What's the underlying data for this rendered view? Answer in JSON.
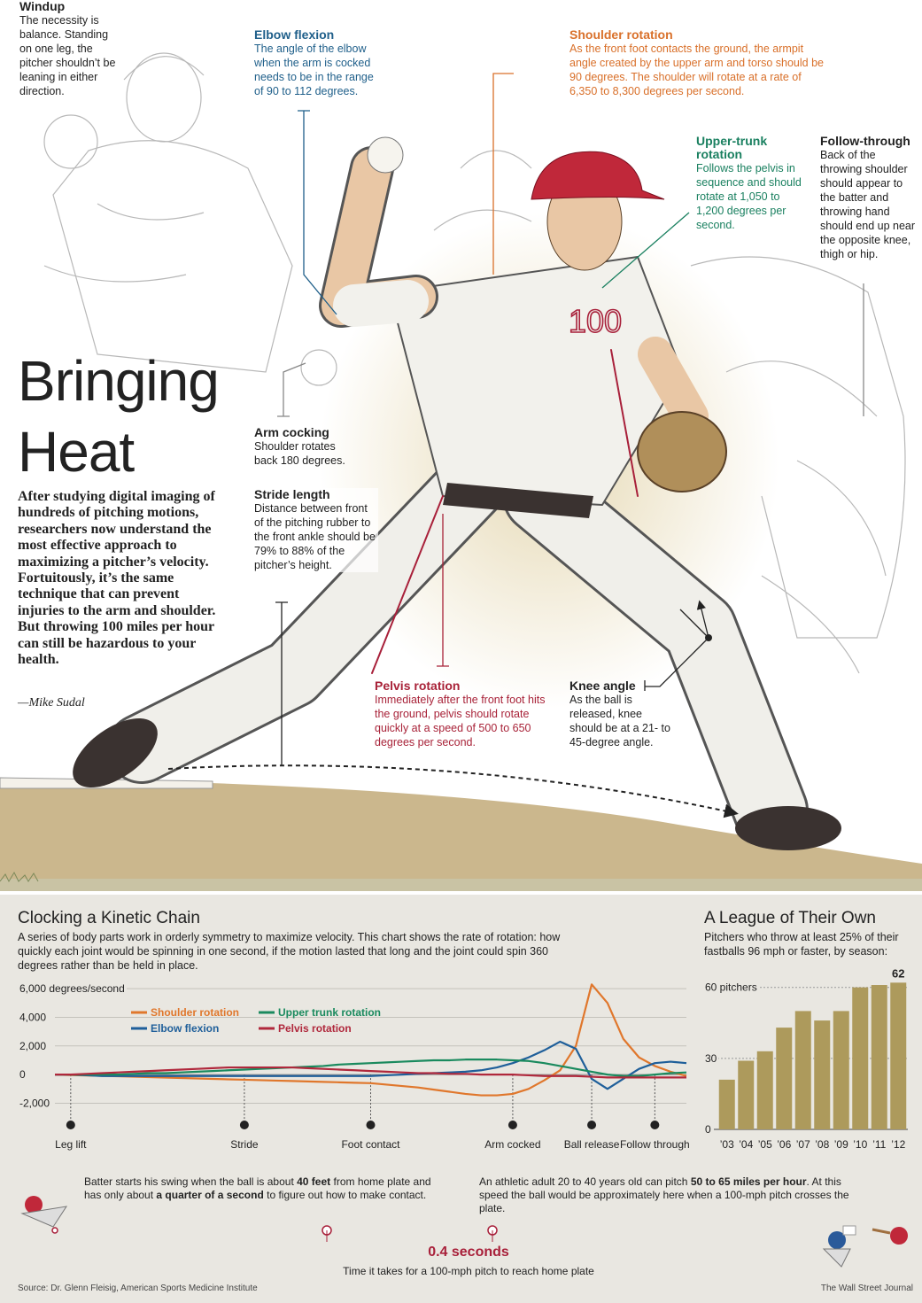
{
  "notes": {
    "windup": {
      "heading": "Windup",
      "body": "The necessity is balance. Standing on one leg, the pitcher shouldn’t be leaning in either direction."
    },
    "elbow": {
      "heading": "Elbow flexion",
      "body": "The angle of the elbow when the arm is cocked needs to be in the range of 90 to 112 degrees."
    },
    "shoulder": {
      "heading": "Shoulder rotation",
      "body": "As the front foot contacts the ground, the armpit angle created by the upper arm and torso should be 90 degrees. The shoulder will rotate at a rate of 6,350 to 8,300 degrees per second."
    },
    "trunk": {
      "heading": "Upper-trunk rotation",
      "body": "Follows the pelvis in sequence and should rotate at 1,050 to 1,200 degrees per second."
    },
    "follow": {
      "heading": "Follow-through",
      "body": "Back of the throwing shoulder should appear to the batter and throwing hand should end up near the opposite knee, thigh or hip."
    },
    "arm": {
      "heading": "Arm cocking",
      "body": "Shoulder rotates back 180 degrees."
    },
    "stride": {
      "heading": "Stride length",
      "body": "Distance between front of the pitching rubber to the front ankle should be 79% to 88% of the pitcher’s height."
    },
    "pelvis": {
      "heading": "Pelvis rotation",
      "body": "Immediately after the front foot hits the ground, pelvis should rotate quickly at a speed of 500 to 650 degrees per second."
    },
    "knee": {
      "heading": "Knee angle",
      "body": "As the ball is released, knee should be at a 21- to 45-degree angle."
    }
  },
  "jersey_number": "100",
  "header": {
    "title": "Bringing Heat",
    "intro": "After studying digital imaging of hundreds of pitching motions, researchers now understand the most effective approach to maximizing a pitcher’s velocity. Fortuitously, it’s the same technique that can prevent injuries to the arm and shoulder. But throwing 100 miles per hour can still be hazardous to your health.",
    "byline": "—Mike Sudal"
  },
  "chart_data": [
    {
      "type": "line",
      "title": "Clocking a Kinetic Chain",
      "subtitle": "A series of body parts work in orderly symmetry to maximize velocity. This chart shows the rate of rotation: how quickly each joint would be spinning in one second, if the motion lasted that long and the joint could spin 360 degrees rather than be held in place.",
      "categories": [
        null,
        "Leg lift",
        null,
        null,
        null,
        null,
        null,
        null,
        null,
        null,
        null,
        null,
        "Stride",
        null,
        null,
        null,
        null,
        null,
        null,
        null,
        "Foot contact",
        null,
        null,
        null,
        null,
        null,
        null,
        null,
        null,
        "Arm cocked",
        null,
        null,
        null,
        null,
        "Ball release",
        null,
        null,
        null,
        "Follow through",
        null,
        null
      ],
      "ylim": [
        -2900,
        7000
      ],
      "yticks": [
        {
          "value": 6000,
          "label": "6,000 degrees/second"
        },
        {
          "value": 4000,
          "label": "4,000"
        },
        {
          "value": 2000,
          "label": "2,000"
        },
        0,
        {
          "value": -2000,
          "label": "-2,000"
        }
      ],
      "series": [
        {
          "name": "Shoulder rotation",
          "color": "#e0772c",
          "values": [
            0,
            -30,
            -60,
            -90,
            -120,
            -150,
            -180,
            -210,
            -240,
            -270,
            -300,
            -330,
            -360,
            -390,
            -420,
            -450,
            -480,
            -510,
            -540,
            -570,
            -600,
            -700,
            -800,
            -900,
            -1050,
            -1200,
            -1350,
            -1450,
            -1450,
            -1350,
            -1000,
            -400,
            300,
            2000,
            6300,
            5000,
            2500,
            1200,
            600,
            200,
            -100
          ]
        },
        {
          "name": "Elbow flexion",
          "color": "#1f5f9a",
          "values": [
            0,
            0,
            -50,
            -100,
            -100,
            -100,
            -100,
            -100,
            -100,
            -100,
            -100,
            -100,
            -100,
            -100,
            -100,
            -100,
            -100,
            -100,
            -100,
            -100,
            -100,
            -50,
            0,
            50,
            100,
            150,
            200,
            300,
            500,
            800,
            1200,
            1700,
            2300,
            1800,
            -300,
            -1000,
            -300,
            400,
            800,
            900,
            800
          ]
        },
        {
          "name": "Upper trunk rotation",
          "color": "#1a8a5e",
          "values": [
            0,
            0,
            0,
            0,
            0,
            50,
            100,
            100,
            150,
            200,
            250,
            300,
            350,
            400,
            450,
            500,
            550,
            600,
            700,
            750,
            800,
            850,
            900,
            950,
            1000,
            1000,
            1050,
            1050,
            1050,
            1000,
            950,
            800,
            600,
            400,
            200,
            0,
            -100,
            -100,
            0,
            100,
            150
          ]
        },
        {
          "name": "Pelvis rotation",
          "color": "#b0283c",
          "values": [
            0,
            0,
            50,
            100,
            150,
            200,
            250,
            300,
            350,
            400,
            450,
            500,
            500,
            500,
            500,
            500,
            450,
            400,
            350,
            300,
            250,
            200,
            150,
            100,
            100,
            50,
            50,
            0,
            0,
            0,
            -50,
            -100,
            -100,
            -100,
            -150,
            -200,
            -200,
            -200,
            -200,
            -200,
            -200
          ]
        }
      ]
    },
    {
      "type": "bar",
      "title": "A League of Their Own",
      "subtitle": "Pitchers who throw at least 25% of their fastballs 96 mph or faster, by season:",
      "categories": [
        "’03",
        "’04",
        "’05",
        "’06",
        "’07",
        "’08",
        "’09",
        "’10",
        "’11",
        "’12"
      ],
      "values": [
        21,
        29,
        33,
        43,
        50,
        46,
        50,
        60,
        61,
        62
      ],
      "color": "#ad9a5c",
      "ylim": [
        0,
        64
      ],
      "yticks": [
        0,
        30,
        {
          "value": 60,
          "label": "60 pitchers"
        }
      ]
    }
  ],
  "timeline": {
    "batter": [
      "Batter starts his swing when the ball is about ",
      "40 feet",
      " from home plate and has only about ",
      "a quarter of a second",
      " to figure out how to make contact."
    ],
    "adult": [
      "An athletic adult 20 to 40 years old can pitch ",
      "50 to 65 miles per hour",
      ". At this speed the ball would be approximately here when a 100-mph pitch crosses the plate."
    ],
    "time_value": "0.4 seconds",
    "time_caption": "Time it takes for a 100-mph pitch to reach home plate"
  },
  "footer": {
    "source": "Source: Dr. Glenn Fleisig, American Sports Medicine Institute",
    "credit": "The Wall Street Journal"
  }
}
